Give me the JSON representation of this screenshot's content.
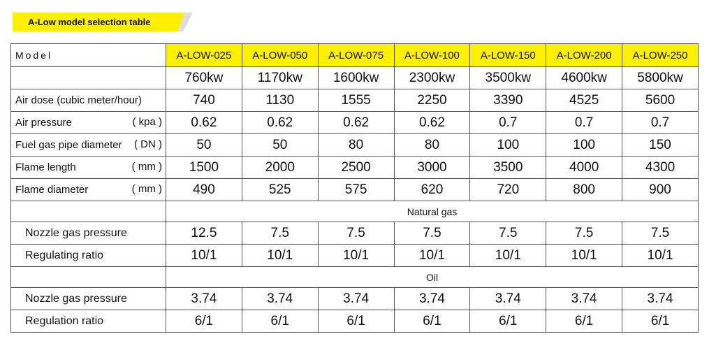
{
  "header": {
    "title": "A-Low model selection table"
  },
  "table": {
    "model_label": "Model",
    "models": [
      "A-LOW-025",
      "A-LOW-050",
      "A-LOW-075",
      "A-LOW-100",
      "A-LOW-150",
      "A-LOW-200",
      "A-LOW-250"
    ],
    "power": [
      "760kw",
      "1170kw",
      "1600kw",
      "2300kw",
      "3500kw",
      "4600kw",
      "5800kw"
    ],
    "rows": [
      {
        "label": "Air dose (cubic meter/hour)",
        "values": [
          740,
          1130,
          1555,
          2250,
          3390,
          4525,
          5600
        ]
      },
      {
        "label": "Air pressure",
        "unit": "( kpa )",
        "values": [
          0.62,
          0.62,
          0.62,
          0.62,
          0.7,
          0.7,
          0.7
        ]
      },
      {
        "label": "Fuel gas pipe diameter",
        "unit": "( DN )",
        "values": [
          50,
          50,
          80,
          80,
          100,
          100,
          150
        ]
      },
      {
        "label": "Flame length",
        "unit": "( mm )",
        "values": [
          1500,
          2000,
          2500,
          3000,
          3500,
          4000,
          4300
        ]
      },
      {
        "label": "Flame diameter",
        "unit": "( mm )",
        "values": [
          490,
          525,
          575,
          620,
          720,
          800,
          900
        ]
      }
    ],
    "sections": [
      {
        "name": "Natural gas",
        "rows": [
          {
            "label": "Nozzle gas pressure",
            "values": [
              12.5,
              7.5,
              7.5,
              7.5,
              7.5,
              7.5,
              7.5
            ]
          },
          {
            "label": "Regulating ratio",
            "values": [
              "10/1",
              "10/1",
              "10/1",
              "10/1",
              "10/1",
              "10/1",
              "10/1"
            ]
          }
        ]
      },
      {
        "name": "Oil",
        "rows": [
          {
            "label": "Nozzle gas pressure",
            "values": [
              3.74,
              3.74,
              3.74,
              3.74,
              3.74,
              3.74,
              3.74
            ]
          },
          {
            "label": "Regulation ratio",
            "values": [
              "6/1",
              "6/1",
              "6/1",
              "6/1",
              "6/1",
              "6/1",
              "6/1"
            ]
          }
        ]
      }
    ]
  }
}
